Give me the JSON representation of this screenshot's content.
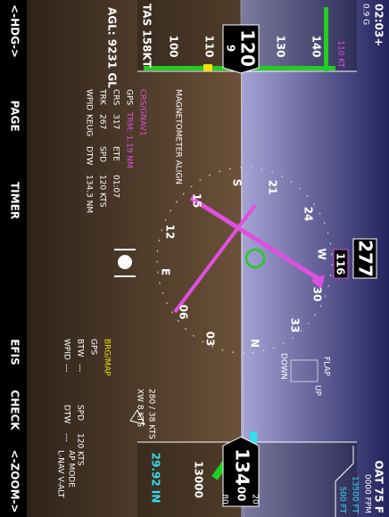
{
  "status": {
    "clock": "02:03+",
    "g_load": "0.9 G",
    "oat": "OAT 75 F",
    "vsi": "0000 FPM"
  },
  "airspeed": {
    "ticks": [
      "140",
      "130",
      "110",
      "100"
    ],
    "current": "120",
    "roll": "9",
    "bug": "110 KT",
    "tas": "TAS 158KT"
  },
  "altimeter": {
    "current": "134",
    "current_small": "00",
    "roll": [
      "20",
      "80"
    ],
    "ticks": [
      "13000"
    ],
    "bug": "13500 FT",
    "vs_bug": "500 FT",
    "baro": "29.92 IN"
  },
  "heading": {
    "current": "277",
    "dtk": "116",
    "rose": [
      "W",
      "24",
      "21",
      "S",
      "15",
      "12",
      "E",
      "06",
      "03",
      "N",
      "33",
      "30"
    ]
  },
  "message": "MAGNETOMETER ALIGN",
  "agl": "AGL: 9231 GL",
  "nav1": {
    "title": "CRS/GNAV1",
    "rows": [
      [
        "GPS",
        "TRM: 1.19 NM"
      ],
      [
        "CRS",
        "317",
        "ETE",
        "01:07"
      ],
      [
        "TRK",
        "267",
        "SPD",
        "120 KTS"
      ],
      [
        "WPID",
        "KEUG",
        "DTW",
        "134.3 NM"
      ]
    ]
  },
  "nav2": {
    "title": "BRG/MAP",
    "rows": [
      [
        "GPS"
      ],
      [
        "BTW",
        "---",
        "SPD",
        "120 KTS"
      ],
      [
        "WPID",
        "---",
        "DTW",
        "---"
      ]
    ]
  },
  "wind": [
    "280 / 38 KTS",
    "XW 8 KTS"
  ],
  "autopilot": [
    "AP MODE",
    "L-NAV V-ALT"
  ],
  "flaps": {
    "title": "FLAP",
    "up": "UP",
    "down": "DOWN"
  },
  "softkeys": [
    "<-HDG->",
    "PAGE",
    "TIMER",
    "EFIS",
    "CHECK",
    "<-ZOOM->"
  ]
}
